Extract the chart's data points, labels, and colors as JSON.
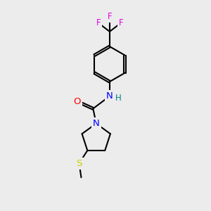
{
  "background_color": "#ececec",
  "bond_color": "#000000",
  "atom_colors": {
    "F": "#dd00dd",
    "O": "#ff0000",
    "N": "#0000ff",
    "S": "#cccc00",
    "H": "#008080",
    "C": "#000000"
  }
}
